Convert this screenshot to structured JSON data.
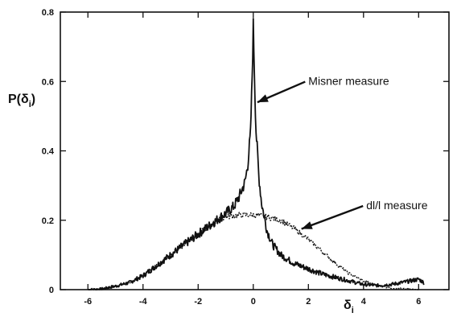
{
  "chart_data": {
    "type": "line",
    "title": "",
    "xlabel": "δ",
    "xlabel_sub": "i",
    "ylabel": "P(δ",
    "ylabel_sub": "i",
    "ylabel_close": ")",
    "xlim": [
      -7,
      7.1
    ],
    "ylim": [
      0,
      0.8
    ],
    "xticks": [
      -6,
      -4,
      -2,
      0,
      2,
      4,
      6
    ],
    "xtick_labels": [
      "-6",
      "-4",
      "-2",
      "0",
      "2",
      "4",
      "6"
    ],
    "yticks": [
      0,
      0.2,
      0.4,
      0.6,
      0.8
    ],
    "ytick_labels": [
      "0",
      "0.2",
      "0.4",
      "0.6",
      "0.8"
    ],
    "grid": false,
    "series": [
      {
        "name": "Misner measure",
        "x": [
          -6.0,
          -5.5,
          -5.0,
          -4.5,
          -4.0,
          -3.5,
          -3.0,
          -2.5,
          -2.0,
          -1.5,
          -1.0,
          -0.7,
          -0.5,
          -0.3,
          -0.2,
          -0.1,
          -0.05,
          0.0,
          0.05,
          0.1,
          0.2,
          0.3,
          0.5,
          0.7,
          1.0,
          1.5,
          2.0,
          2.5,
          3.0,
          3.5,
          4.0,
          4.5,
          5.0,
          5.5,
          6.0,
          6.2
        ],
        "y": [
          0.0,
          0.002,
          0.01,
          0.02,
          0.04,
          0.07,
          0.1,
          0.13,
          0.16,
          0.19,
          0.22,
          0.24,
          0.27,
          0.31,
          0.36,
          0.45,
          0.58,
          0.76,
          0.6,
          0.46,
          0.33,
          0.25,
          0.17,
          0.13,
          0.1,
          0.075,
          0.06,
          0.045,
          0.035,
          0.025,
          0.015,
          0.012,
          0.015,
          0.022,
          0.03,
          0.02
        ]
      },
      {
        "name": "dl/l measure",
        "x": [
          -6.0,
          -5.5,
          -5.0,
          -4.5,
          -4.0,
          -3.5,
          -3.0,
          -2.5,
          -2.0,
          -1.5,
          -1.0,
          -0.5,
          0.0,
          0.5,
          1.0,
          1.5,
          2.0,
          2.5,
          3.0,
          3.5,
          4.0,
          4.5,
          5.0,
          5.5,
          6.0
        ],
        "y": [
          0.0,
          0.002,
          0.01,
          0.02,
          0.04,
          0.07,
          0.1,
          0.13,
          0.16,
          0.19,
          0.21,
          0.215,
          0.215,
          0.21,
          0.2,
          0.175,
          0.145,
          0.11,
          0.075,
          0.045,
          0.025,
          0.012,
          0.005,
          0.002,
          0.0
        ]
      }
    ],
    "annotations": [
      {
        "text": "Misner measure",
        "x": 2.0,
        "y": 0.59,
        "arrow_to": [
          0.15,
          0.54
        ]
      },
      {
        "text": "dl/l measure",
        "x": 4.1,
        "y": 0.232,
        "arrow_to": [
          1.75,
          0.175
        ]
      }
    ]
  }
}
